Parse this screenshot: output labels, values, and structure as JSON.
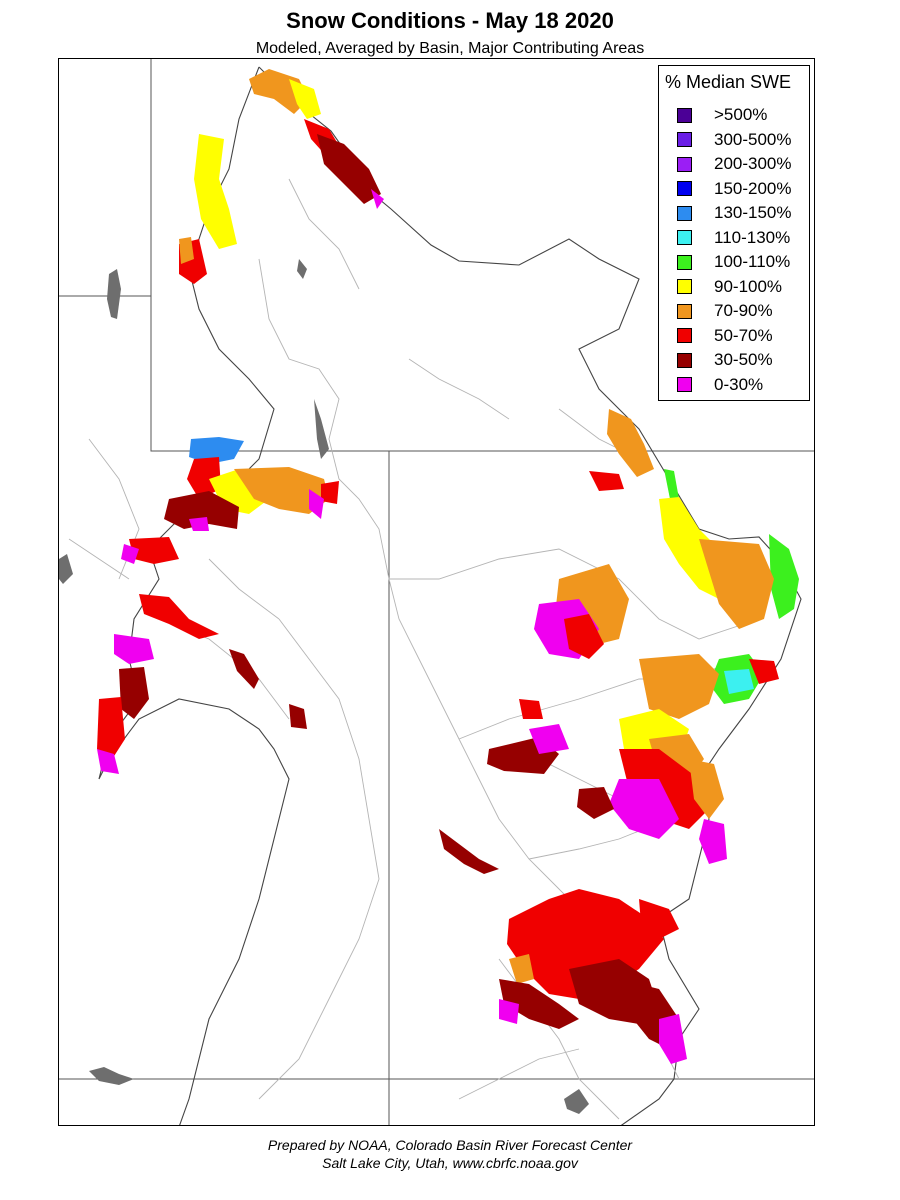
{
  "title": "Snow Conditions - May 18 2020",
  "subtitle": "Modeled, Averaged by Basin, Major Contributing Areas",
  "legend": {
    "title": "% Median SWE",
    "items": [
      {
        "label": ">500%",
        "color": "#4b0096"
      },
      {
        "label": "300-500%",
        "color": "#6a1ee6"
      },
      {
        "label": "200-300%",
        "color": "#9b1ef5"
      },
      {
        "label": "150-200%",
        "color": "#0000f0"
      },
      {
        "label": "130-150%",
        "color": "#2d8cf0"
      },
      {
        "label": "110-130%",
        "color": "#3cf0f0"
      },
      {
        "label": "100-110%",
        "color": "#3cf01e"
      },
      {
        "label": "90-100%",
        "color": "#ffff00"
      },
      {
        "label": "70-90%",
        "color": "#f0961e"
      },
      {
        "label": "50-70%",
        "color": "#f00000"
      },
      {
        "label": "30-50%",
        "color": "#960000"
      },
      {
        "label": "0-30%",
        "color": "#f000f0"
      }
    ]
  },
  "credits": {
    "line1": "Prepared by NOAA, Colorado Basin River Forecast Center",
    "line2": "Salt Lake City, Utah, www.cbrfc.noaa.gov"
  }
}
